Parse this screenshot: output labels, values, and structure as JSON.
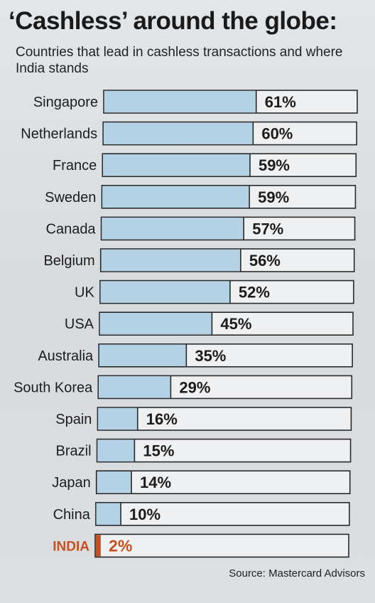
{
  "title": "‘Cashless’ around the globe:",
  "subtitle": "Countries that lead in cashless transactions and where India stands",
  "source": "Source: Mastercard Advisors",
  "colors": {
    "bar_fill": "#b4d2e6",
    "bar_outline": "#2a2a2a",
    "highlight": "#c8501e",
    "label": "#1c1c1c"
  },
  "chart_data": {
    "type": "bar",
    "orientation": "horizontal",
    "categories": [
      "Singapore",
      "Netherlands",
      "France",
      "Sweden",
      "Canada",
      "Belgium",
      "UK",
      "USA",
      "Australia",
      "South Korea",
      "Spain",
      "Brazil",
      "Japan",
      "China",
      "INDIA"
    ],
    "values": [
      61,
      60,
      59,
      59,
      57,
      56,
      52,
      45,
      35,
      29,
      16,
      15,
      14,
      10,
      2
    ],
    "value_labels": [
      "61%",
      "60%",
      "59%",
      "59%",
      "57%",
      "56%",
      "52%",
      "45%",
      "35%",
      "29%",
      "16%",
      "15%",
      "14%",
      "10%",
      "2%"
    ],
    "highlight_category": "INDIA",
    "xlim": [
      0,
      100
    ],
    "grid": false,
    "legend": "none"
  }
}
